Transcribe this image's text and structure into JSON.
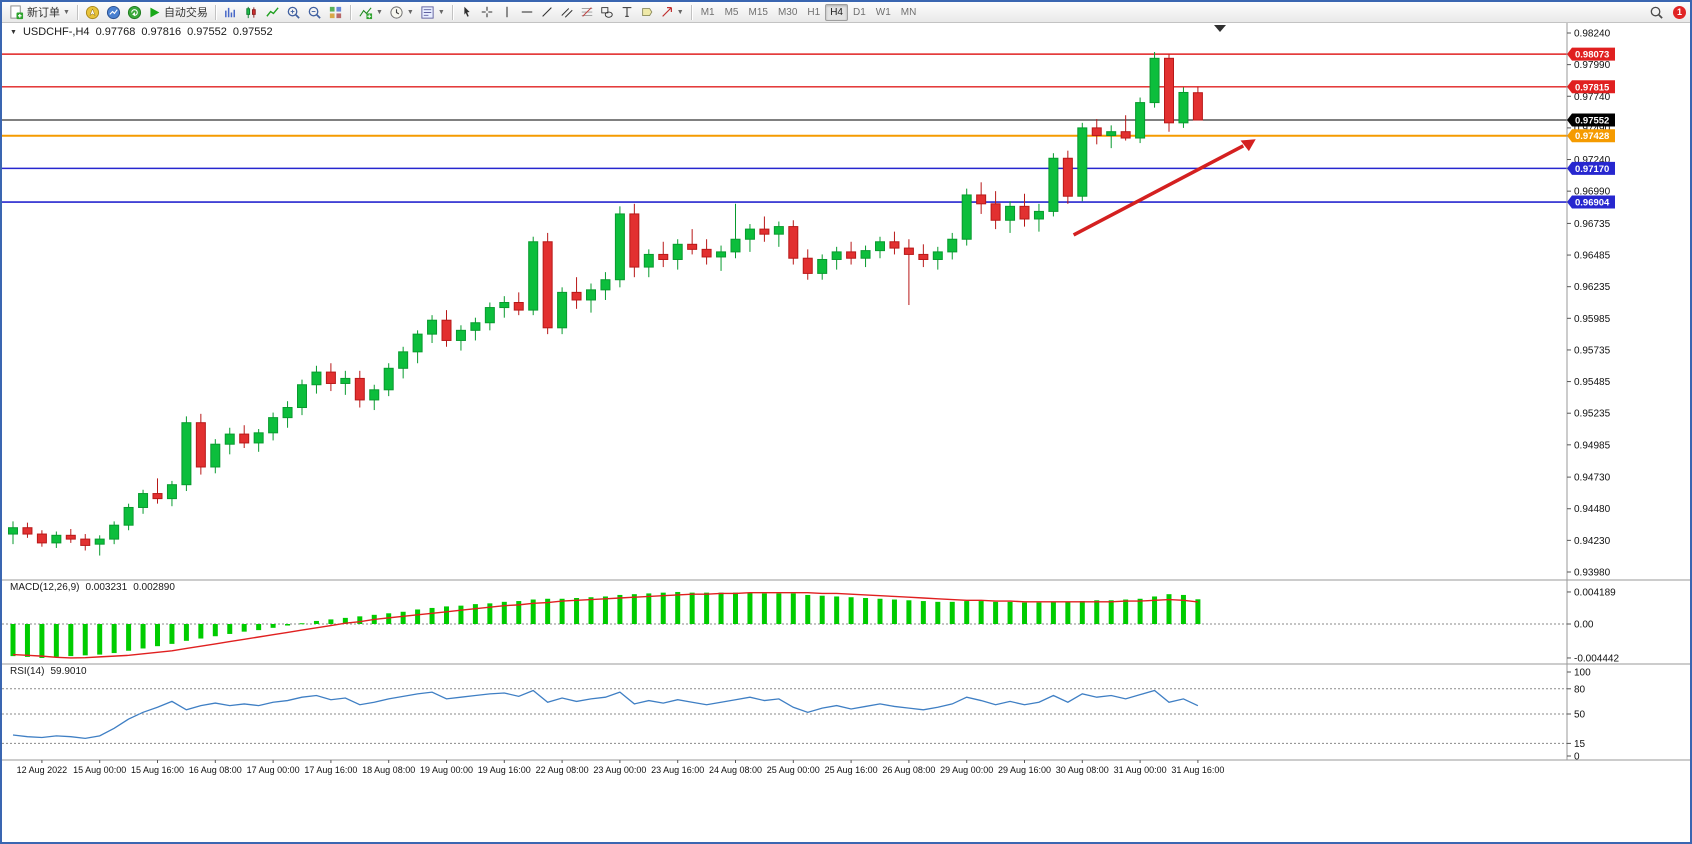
{
  "toolbar": {
    "new_order_label": "新订单",
    "autotrade_label": "自动交易",
    "timeframes": [
      "M1",
      "M5",
      "M15",
      "M30",
      "H1",
      "H4",
      "D1",
      "W1",
      "MN"
    ],
    "active_timeframe": "H4",
    "notification_count": "1",
    "icons": [
      "new-order-icon",
      "compass-icon",
      "market-watch-icon",
      "navigator-icon",
      "autotrade-play-icon",
      "bar-chart-icon",
      "candlestick-chart-icon",
      "line-chart-icon",
      "zoom-in-icon",
      "zoom-out-icon",
      "tile-windows-icon",
      "indicators-icon",
      "periods-clock-icon",
      "templates-icon",
      "cursor-icon",
      "crosshair-icon",
      "vertical-line-icon",
      "horizontal-line-icon",
      "trendline-icon",
      "channel-icon",
      "fibonacci-icon",
      "shapes-icon",
      "text-icon",
      "label-icon",
      "arrows-icon",
      "search-icon",
      "notification-badge"
    ]
  },
  "header": {
    "symbol": "USDCHF-,H4",
    "open": "0.97768",
    "high": "0.97816",
    "low": "0.97552",
    "close": "0.97552"
  },
  "macd_label": {
    "name": "MACD(12,26,9)",
    "value_main": "0.003231",
    "value_signal": "0.002890"
  },
  "rsi_label": {
    "name": "RSI(14)",
    "value": "59.9010"
  },
  "chart_data": {
    "type": "multi-panel",
    "colors": {
      "bull": "#0cbe3c",
      "bull_edge": "#089a2e",
      "bear": "#e23030",
      "bear_edge": "#b81818",
      "macd_hist": "#00cc00",
      "macd_signal": "#e02020",
      "rsi": "#3f7fc4",
      "arrow": "#d42020",
      "axis_line": "#9a9a9a",
      "level_dash": "#8a8a8a"
    },
    "price_panel": {
      "type": "candlestick",
      "symbol": "USDCHF-,H4",
      "ylim": [
        0.9398,
        0.9824
      ],
      "price_ticks": [
        "0.98240",
        "0.97990",
        "0.97740",
        "0.97490",
        "0.97240",
        "0.96990",
        "0.96735",
        "0.96485",
        "0.96235",
        "0.95985",
        "0.95735",
        "0.95485",
        "0.95235",
        "0.94985",
        "0.94730",
        "0.94480",
        "0.94230",
        "0.93980"
      ],
      "lines": [
        {
          "label": "0.98073",
          "price": 0.98073,
          "color": "#e02020",
          "width": 1.4
        },
        {
          "label": "0.97815",
          "price": 0.97815,
          "color": "#e02020",
          "width": 1.4
        },
        {
          "label": "0.97552",
          "price": 0.97552,
          "color": "#000000",
          "width": 1
        },
        {
          "label": "0.97428",
          "price": 0.97428,
          "color": "#f59b00",
          "width": 2
        },
        {
          "label": "0.97170",
          "price": 0.9717,
          "color": "#2727cf",
          "width": 1.6
        },
        {
          "label": "0.96904",
          "price": 0.96904,
          "color": "#2727cf",
          "width": 1.6
        }
      ],
      "arrow": {
        "from": {
          "index": 73.4,
          "price": 0.96644
        },
        "to": {
          "index": 86,
          "price": 0.974
        }
      },
      "time_labels": [
        "12 Aug 2022",
        "15 Aug 00:00",
        "15 Aug 16:00",
        "16 Aug 08:00",
        "17 Aug 00:00",
        "17 Aug 16:00",
        "18 Aug 08:00",
        "19 Aug 00:00",
        "19 Aug 16:00",
        "22 Aug 08:00",
        "23 Aug 00:00",
        "23 Aug 16:00",
        "24 Aug 08:00",
        "25 Aug 00:00",
        "25 Aug 16:00",
        "26 Aug 08:00",
        "29 Aug 00:00",
        "29 Aug 16:00",
        "30 Aug 08:00",
        "31 Aug 00:00",
        "31 Aug 16:00"
      ],
      "time_label_indices": [
        2,
        6,
        10,
        14,
        18,
        22,
        26,
        30,
        34,
        38,
        42,
        46,
        50,
        54,
        58,
        62,
        66,
        70,
        74,
        78,
        82
      ],
      "candles": [
        [
          0.9428,
          0.9438,
          0.942,
          0.9433
        ],
        [
          0.9433,
          0.9437,
          0.9425,
          0.9428
        ],
        [
          0.9428,
          0.9431,
          0.9418,
          0.9421
        ],
        [
          0.9421,
          0.943,
          0.9417,
          0.9427
        ],
        [
          0.9427,
          0.9432,
          0.9421,
          0.9424
        ],
        [
          0.9424,
          0.9428,
          0.9415,
          0.9419
        ],
        [
          0.942,
          0.9427,
          0.9411,
          0.9424
        ],
        [
          0.9424,
          0.9438,
          0.942,
          0.9435
        ],
        [
          0.9435,
          0.9452,
          0.9431,
          0.9449
        ],
        [
          0.9449,
          0.9463,
          0.9444,
          0.946
        ],
        [
          0.946,
          0.9472,
          0.9452,
          0.9456
        ],
        [
          0.9456,
          0.947,
          0.945,
          0.9467
        ],
        [
          0.9467,
          0.9521,
          0.9462,
          0.9516
        ],
        [
          0.9516,
          0.9523,
          0.9475,
          0.9481
        ],
        [
          0.9481,
          0.9503,
          0.9476,
          0.9499
        ],
        [
          0.9499,
          0.9512,
          0.9491,
          0.9507
        ],
        [
          0.9507,
          0.9514,
          0.9496,
          0.95
        ],
        [
          0.95,
          0.9511,
          0.9493,
          0.9508
        ],
        [
          0.9508,
          0.9524,
          0.9502,
          0.952
        ],
        [
          0.952,
          0.9533,
          0.9512,
          0.9528
        ],
        [
          0.9528,
          0.955,
          0.9522,
          0.9546
        ],
        [
          0.9546,
          0.9561,
          0.9539,
          0.9556
        ],
        [
          0.9556,
          0.9563,
          0.9541,
          0.9547
        ],
        [
          0.9547,
          0.9557,
          0.9538,
          0.9551
        ],
        [
          0.9551,
          0.9557,
          0.9528,
          0.9534
        ],
        [
          0.9534,
          0.9546,
          0.9526,
          0.9542
        ],
        [
          0.9542,
          0.9563,
          0.9537,
          0.9559
        ],
        [
          0.9559,
          0.9576,
          0.9551,
          0.9572
        ],
        [
          0.9572,
          0.9589,
          0.9563,
          0.9586
        ],
        [
          0.9586,
          0.9601,
          0.9579,
          0.9597
        ],
        [
          0.9597,
          0.9605,
          0.9576,
          0.9581
        ],
        [
          0.9581,
          0.9593,
          0.9573,
          0.9589
        ],
        [
          0.9589,
          0.9599,
          0.9581,
          0.9595
        ],
        [
          0.9595,
          0.9611,
          0.9589,
          0.9607
        ],
        [
          0.9607,
          0.9616,
          0.9599,
          0.9611
        ],
        [
          0.9611,
          0.9619,
          0.9601,
          0.9605
        ],
        [
          0.9605,
          0.9663,
          0.9601,
          0.9659
        ],
        [
          0.9659,
          0.9666,
          0.9586,
          0.9591
        ],
        [
          0.9591,
          0.9623,
          0.9586,
          0.9619
        ],
        [
          0.9619,
          0.9631,
          0.9606,
          0.9613
        ],
        [
          0.9613,
          0.9626,
          0.9603,
          0.9621
        ],
        [
          0.9621,
          0.9635,
          0.9613,
          0.9629
        ],
        [
          0.9629,
          0.9687,
          0.9623,
          0.9681
        ],
        [
          0.9681,
          0.9689,
          0.9631,
          0.9639
        ],
        [
          0.9639,
          0.9653,
          0.9631,
          0.9649
        ],
        [
          0.9649,
          0.9659,
          0.9639,
          0.9645
        ],
        [
          0.9645,
          0.9661,
          0.9637,
          0.9657
        ],
        [
          0.9657,
          0.9669,
          0.9649,
          0.9653
        ],
        [
          0.9653,
          0.9661,
          0.9641,
          0.9647
        ],
        [
          0.9647,
          0.9656,
          0.9636,
          0.9651
        ],
        [
          0.9651,
          0.9689,
          0.9646,
          0.9661
        ],
        [
          0.9661,
          0.9673,
          0.9651,
          0.9669
        ],
        [
          0.9669,
          0.9679,
          0.9659,
          0.9665
        ],
        [
          0.9665,
          0.9675,
          0.9655,
          0.9671
        ],
        [
          0.9671,
          0.9676,
          0.9641,
          0.9646
        ],
        [
          0.9646,
          0.9653,
          0.9629,
          0.9634
        ],
        [
          0.9634,
          0.9649,
          0.9629,
          0.9645
        ],
        [
          0.9645,
          0.9655,
          0.9637,
          0.9651
        ],
        [
          0.9651,
          0.9659,
          0.9641,
          0.9646
        ],
        [
          0.9646,
          0.9656,
          0.9639,
          0.9652
        ],
        [
          0.9652,
          0.9663,
          0.9646,
          0.9659
        ],
        [
          0.9659,
          0.9667,
          0.9649,
          0.9654
        ],
        [
          0.9654,
          0.9661,
          0.9609,
          0.9649
        ],
        [
          0.9649,
          0.9657,
          0.9639,
          0.9645
        ],
        [
          0.9645,
          0.9655,
          0.9637,
          0.9651
        ],
        [
          0.9651,
          0.9666,
          0.9645,
          0.9661
        ],
        [
          0.9661,
          0.9701,
          0.9656,
          0.9696
        ],
        [
          0.9696,
          0.9706,
          0.9681,
          0.9689
        ],
        [
          0.9689,
          0.9699,
          0.9669,
          0.9676
        ],
        [
          0.9676,
          0.9691,
          0.9666,
          0.9687
        ],
        [
          0.9687,
          0.9697,
          0.9671,
          0.9677
        ],
        [
          0.9677,
          0.9689,
          0.9667,
          0.9683
        ],
        [
          0.9683,
          0.9729,
          0.9679,
          0.9725
        ],
        [
          0.9725,
          0.9731,
          0.9689,
          0.9695
        ],
        [
          0.9695,
          0.9753,
          0.9691,
          0.9749
        ],
        [
          0.9749,
          0.9756,
          0.9736,
          0.9743
        ],
        [
          0.9743,
          0.9751,
          0.9733,
          0.9746
        ],
        [
          0.9746,
          0.9759,
          0.9739,
          0.9741
        ],
        [
          0.9741,
          0.9773,
          0.9737,
          0.9769
        ],
        [
          0.9769,
          0.9809,
          0.9765,
          0.9804
        ],
        [
          0.9804,
          0.9807,
          0.9746,
          0.9753
        ],
        [
          0.9753,
          0.9781,
          0.9749,
          0.9777
        ],
        [
          0.97768,
          0.97816,
          0.97552,
          0.97552
        ]
      ]
    },
    "macd_panel": {
      "type": "bar",
      "name": "MACD(12,26,9)",
      "axis_ticks": [
        "0.004189",
        "0.00",
        "-0.004442"
      ],
      "value_main": 0.003231,
      "value_signal": 0.00289,
      "histogram": [
        -0.0042,
        -0.0043,
        -0.004442,
        -0.0043,
        -0.0042,
        -0.0041,
        -0.004,
        -0.0038,
        -0.0035,
        -0.0032,
        -0.0029,
        -0.0026,
        -0.0022,
        -0.0019,
        -0.0016,
        -0.0013,
        -0.001,
        -0.0008,
        -0.0005,
        -0.0002,
        0.0001,
        0.0004,
        0.0006,
        0.0008,
        0.001,
        0.0012,
        0.0014,
        0.0016,
        0.0019,
        0.0021,
        0.0023,
        0.0024,
        0.0026,
        0.0027,
        0.0029,
        0.003,
        0.0032,
        0.0033,
        0.0033,
        0.0034,
        0.0035,
        0.0036,
        0.0038,
        0.0039,
        0.004,
        0.0041,
        0.004189,
        0.0041,
        0.0041,
        0.0041,
        0.0041,
        0.0041,
        0.004,
        0.004,
        0.004,
        0.0038,
        0.0037,
        0.0036,
        0.0035,
        0.0034,
        0.0033,
        0.0032,
        0.0031,
        0.003,
        0.0029,
        0.0029,
        0.003,
        0.003,
        0.0029,
        0.0029,
        0.0028,
        0.0028,
        0.0029,
        0.0029,
        0.003,
        0.0031,
        0.0031,
        0.0032,
        0.0033,
        0.0036,
        0.0039,
        0.0038,
        0.003231
      ],
      "signal": [
        -0.004,
        -0.0041,
        -0.0042,
        -0.00435,
        -0.004442,
        -0.0044,
        -0.0043,
        -0.0042,
        -0.0041,
        -0.0039,
        -0.0037,
        -0.0035,
        -0.0032,
        -0.0029,
        -0.0026,
        -0.0023,
        -0.002,
        -0.0017,
        -0.0014,
        -0.0011,
        -0.0008,
        -0.0005,
        -0.0002,
        0.0001,
        0.0003,
        0.0006,
        0.0008,
        0.001,
        0.0012,
        0.0014,
        0.0016,
        0.0018,
        0.002,
        0.0022,
        0.0024,
        0.0025,
        0.0027,
        0.0028,
        0.003,
        0.0031,
        0.0032,
        0.0033,
        0.0034,
        0.0035,
        0.0036,
        0.0037,
        0.0038,
        0.0039,
        0.0039,
        0.004,
        0.004,
        0.0041,
        0.0041,
        0.0041,
        0.0041,
        0.0041,
        0.004,
        0.004,
        0.0039,
        0.0038,
        0.0037,
        0.0036,
        0.0035,
        0.0034,
        0.0033,
        0.0032,
        0.0031,
        0.0031,
        0.003,
        0.003,
        0.0029,
        0.0029,
        0.0029,
        0.0029,
        0.0029,
        0.0029,
        0.0029,
        0.003,
        0.003,
        0.0031,
        0.0032,
        0.0031,
        0.00289
      ]
    },
    "rsi_panel": {
      "type": "line",
      "name": "RSI(14)",
      "axis_ticks": [
        "100",
        "80",
        "50",
        "15",
        "0"
      ],
      "levels": [
        80,
        50,
        15
      ],
      "value_shown": 59.901,
      "values": [
        25,
        23,
        22,
        24,
        23,
        21,
        24,
        33,
        44,
        52,
        58,
        65,
        55,
        60,
        63,
        60,
        62,
        60,
        64,
        66,
        70,
        72,
        67,
        69,
        61,
        64,
        68,
        71,
        74,
        76,
        68,
        70,
        72,
        74,
        75,
        71,
        78,
        64,
        69,
        65,
        68,
        70,
        76,
        62,
        66,
        63,
        67,
        64,
        61,
        64,
        67,
        70,
        66,
        68,
        58,
        52,
        57,
        60,
        56,
        59,
        62,
        59,
        57,
        55,
        58,
        62,
        70,
        66,
        61,
        65,
        61,
        64,
        72,
        64,
        74,
        70,
        72,
        68,
        73,
        78,
        64,
        68,
        59.9
      ]
    }
  }
}
